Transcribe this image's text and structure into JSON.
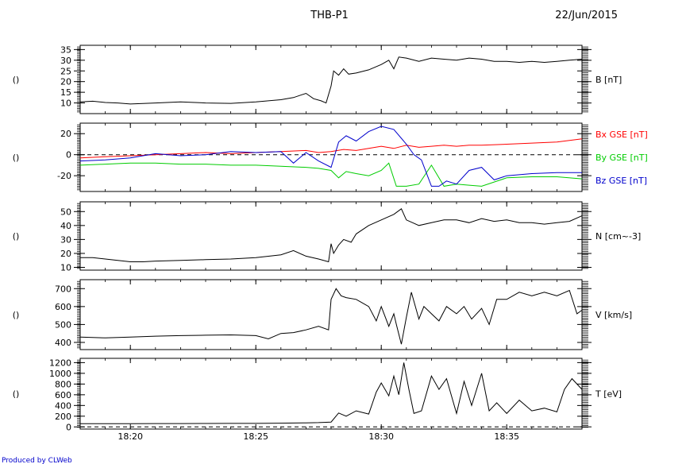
{
  "header": {
    "probe": "THB-P1",
    "date": "22/Jun/2015"
  },
  "footer": {
    "credit": "Produced by CLWeb"
  },
  "chart_data": [
    {
      "type": "line",
      "panel": "B",
      "ylabel": "()",
      "right_label": "B [nT]",
      "ylim": [
        5,
        37
      ],
      "yticks": [
        10,
        15,
        20,
        25,
        30,
        35
      ],
      "series": [
        {
          "name": "B [nT]",
          "color": "#000000",
          "x": [
            18.0,
            18.5,
            19.0,
            19.5,
            20.0,
            21.0,
            22.0,
            23.0,
            24.0,
            25.0,
            26.0,
            26.5,
            27.0,
            27.3,
            27.6,
            27.8,
            28.0,
            28.1,
            28.3,
            28.5,
            28.7,
            29.0,
            29.5,
            30.0,
            30.3,
            30.5,
            30.7,
            31.0,
            31.5,
            32.0,
            32.5,
            33.0,
            33.5,
            34.0,
            34.5,
            35.0,
            35.5,
            36.0,
            36.5,
            37.0,
            37.5,
            38.0
          ],
          "y": [
            10.5,
            10.8,
            10.2,
            10.0,
            9.5,
            10.0,
            10.5,
            10.0,
            9.8,
            10.5,
            11.5,
            12.5,
            14.5,
            12.0,
            11.0,
            10.0,
            18.0,
            25.0,
            23.0,
            26.0,
            23.5,
            24.0,
            25.5,
            28.0,
            30.0,
            26.0,
            31.5,
            31.0,
            29.5,
            31.0,
            30.5,
            30.0,
            31.0,
            30.5,
            29.5,
            29.5,
            29.0,
            29.5,
            29.0,
            29.5,
            30.0,
            30.5
          ]
        }
      ]
    },
    {
      "type": "line",
      "panel": "B GSE",
      "ylabel": "()",
      "ylim": [
        -35,
        30
      ],
      "yticks": [
        20,
        0,
        -20
      ],
      "reference_line": 0,
      "series": [
        {
          "name": "Bx GSE [nT]",
          "color": "#ff0000",
          "x": [
            18.0,
            19.0,
            20.0,
            21.0,
            22.0,
            23.0,
            24.0,
            25.0,
            26.0,
            27.0,
            27.5,
            28.0,
            28.5,
            29.0,
            29.5,
            30.0,
            30.5,
            31.0,
            31.5,
            32.0,
            32.5,
            33.0,
            33.5,
            34.0,
            35.0,
            36.0,
            37.0,
            38.0
          ],
          "y": [
            -3,
            -2,
            -1,
            0,
            1,
            2,
            1,
            2,
            3,
            4,
            2,
            3,
            5,
            4,
            6,
            8,
            6,
            9,
            7,
            8,
            9,
            8,
            9,
            9,
            10,
            11,
            12,
            15
          ]
        },
        {
          "name": "By GSE [nT]",
          "color": "#00cc00",
          "x": [
            18.0,
            19.0,
            20.0,
            21.0,
            22.0,
            23.0,
            24.0,
            25.0,
            26.0,
            27.0,
            27.5,
            28.0,
            28.3,
            28.6,
            29.0,
            29.5,
            30.0,
            30.3,
            30.6,
            31.0,
            31.5,
            32.0,
            32.5,
            33.0,
            33.5,
            34.0,
            35.0,
            36.0,
            37.0,
            38.0
          ],
          "y": [
            -10,
            -9,
            -8,
            -8,
            -9,
            -9,
            -10,
            -10,
            -11,
            -12,
            -13,
            -15,
            -22,
            -16,
            -18,
            -20,
            -15,
            -8,
            -30,
            -30,
            -28,
            -10,
            -30,
            -28,
            -29,
            -30,
            -22,
            -21,
            -21,
            -23
          ]
        },
        {
          "name": "Bz GSE [nT]",
          "color": "#0000cc",
          "x": [
            18.0,
            19.0,
            20.0,
            21.0,
            22.0,
            23.0,
            24.0,
            25.0,
            26.0,
            26.5,
            27.0,
            27.5,
            28.0,
            28.3,
            28.6,
            29.0,
            29.5,
            30.0,
            30.5,
            31.0,
            31.3,
            31.6,
            32.0,
            32.3,
            32.6,
            33.0,
            33.5,
            34.0,
            34.5,
            35.0,
            36.0,
            37.0,
            38.0
          ],
          "y": [
            -6,
            -5,
            -3,
            1,
            -1,
            0,
            3,
            2,
            3,
            -8,
            2,
            -6,
            -12,
            12,
            18,
            13,
            22,
            27,
            24,
            10,
            0,
            -5,
            -30,
            -30,
            -25,
            -28,
            -15,
            -12,
            -24,
            -20,
            -18,
            -17,
            -17
          ]
        }
      ]
    },
    {
      "type": "line",
      "panel": "N",
      "ylabel": "()",
      "right_label": "N [cm^-3]",
      "ylim": [
        8,
        57
      ],
      "yticks": [
        10,
        20,
        30,
        40,
        50
      ],
      "series": [
        {
          "name": "N [cm^-3]",
          "color": "#000000",
          "x": [
            18.0,
            18.5,
            19.0,
            19.5,
            20.0,
            20.5,
            21.0,
            22.0,
            23.0,
            24.0,
            25.0,
            26.0,
            26.5,
            27.0,
            27.5,
            27.9,
            28.0,
            28.1,
            28.3,
            28.5,
            28.8,
            29.0,
            29.5,
            30.0,
            30.5,
            30.8,
            31.0,
            31.5,
            32.0,
            32.5,
            33.0,
            33.5,
            34.0,
            34.5,
            35.0,
            35.5,
            36.0,
            36.5,
            37.0,
            37.5,
            38.0
          ],
          "y": [
            17,
            17,
            16,
            15,
            14,
            14,
            14.5,
            15,
            15.5,
            16,
            17,
            19,
            22,
            18,
            16,
            14,
            27,
            20,
            26,
            30,
            28,
            34,
            40,
            44,
            48,
            52,
            44,
            40,
            42,
            44,
            44,
            42,
            45,
            43,
            44,
            42,
            42,
            41,
            42,
            43,
            47
          ]
        }
      ]
    },
    {
      "type": "line",
      "panel": "V",
      "ylabel": "()",
      "right_label": "V [km/s]",
      "ylim": [
        360,
        750
      ],
      "yticks": [
        400,
        500,
        600,
        700
      ],
      "series": [
        {
          "name": "V [km/s]",
          "color": "#000000",
          "x": [
            18.0,
            19.0,
            20.0,
            21.0,
            22.0,
            23.0,
            24.0,
            25.0,
            25.5,
            26.0,
            26.5,
            27.0,
            27.5,
            27.9,
            28.0,
            28.2,
            28.4,
            28.6,
            29.0,
            29.5,
            29.8,
            30.0,
            30.3,
            30.5,
            30.6,
            30.8,
            31.0,
            31.2,
            31.5,
            31.7,
            32.0,
            32.3,
            32.6,
            33.0,
            33.3,
            33.6,
            34.0,
            34.3,
            34.6,
            35.0,
            35.5,
            36.0,
            36.5,
            37.0,
            37.5,
            37.8,
            38.0
          ],
          "y": [
            430,
            425,
            430,
            435,
            438,
            440,
            442,
            438,
            420,
            450,
            455,
            470,
            490,
            470,
            640,
            700,
            660,
            650,
            640,
            600,
            520,
            600,
            490,
            560,
            500,
            390,
            540,
            680,
            530,
            600,
            560,
            520,
            600,
            560,
            600,
            530,
            590,
            500,
            640,
            640,
            680,
            660,
            680,
            660,
            690,
            560,
            580
          ]
        }
      ]
    },
    {
      "type": "line",
      "panel": "T",
      "ylabel": "()",
      "right_label": "T [eV]",
      "ylim": [
        -40,
        1280
      ],
      "yticks": [
        0,
        200,
        400,
        600,
        800,
        1000,
        1200
      ],
      "reference_line": 0,
      "xlabel": "",
      "xticks": [
        "18:20",
        "18:25",
        "18:30",
        "18:35"
      ],
      "xtick_minutes": [
        20,
        25,
        30,
        35
      ],
      "xlim_minutes": [
        18,
        38
      ],
      "series": [
        {
          "name": "T [eV]",
          "color": "#000000",
          "x": [
            18.0,
            19.0,
            20.0,
            21.0,
            22.0,
            23.0,
            24.0,
            25.0,
            26.0,
            27.0,
            27.5,
            28.0,
            28.3,
            28.6,
            29.0,
            29.5,
            29.8,
            30.0,
            30.3,
            30.5,
            30.7,
            30.9,
            31.1,
            31.3,
            31.6,
            32.0,
            32.3,
            32.6,
            33.0,
            33.3,
            33.6,
            34.0,
            34.3,
            34.6,
            35.0,
            35.5,
            36.0,
            36.5,
            37.0,
            37.3,
            37.6,
            38.0
          ],
          "y": [
            60,
            60,
            60,
            62,
            62,
            64,
            65,
            66,
            70,
            75,
            80,
            90,
            260,
            200,
            300,
            240,
            650,
            820,
            580,
            950,
            600,
            1200,
            700,
            250,
            300,
            950,
            700,
            900,
            250,
            850,
            400,
            1000,
            300,
            450,
            250,
            500,
            300,
            350,
            280,
            700,
            900,
            700
          ]
        }
      ]
    }
  ]
}
